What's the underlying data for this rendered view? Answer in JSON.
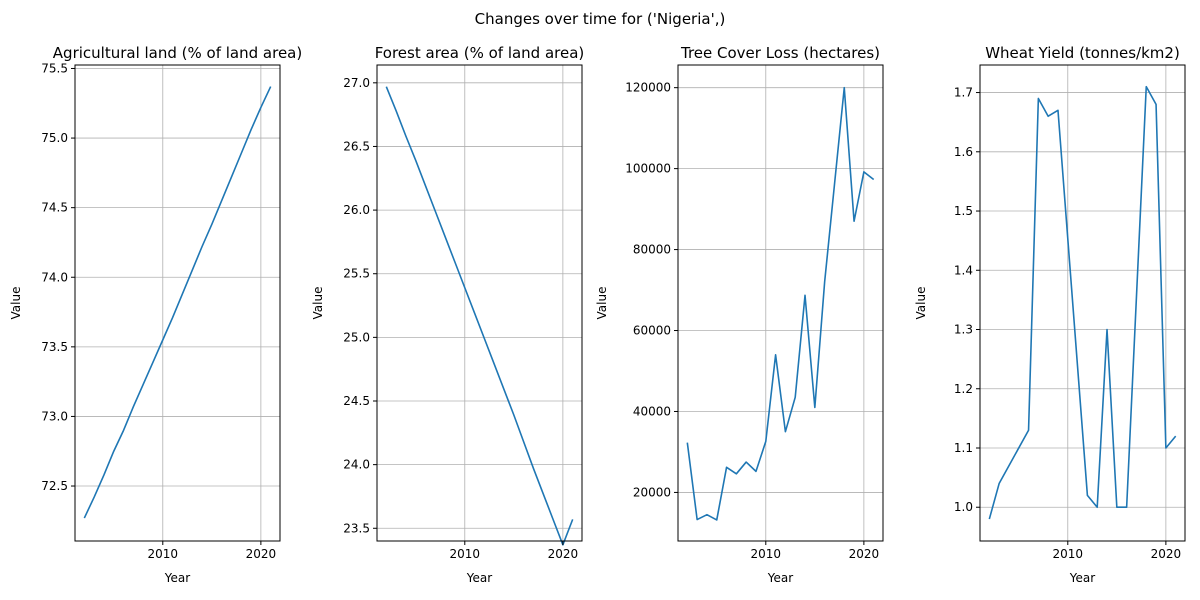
{
  "figure": {
    "suptitle": "Changes over time for ('Nigeria',)"
  },
  "colors": {
    "line": "#1f77b4",
    "grid": "#b0b0b0",
    "axis": "#000000"
  },
  "chart_data": [
    {
      "type": "line",
      "title": "Agricultural land (% of land area)",
      "xlabel": "Year",
      "ylabel": "Value",
      "xlim": [
        2001.05,
        2021.95
      ],
      "ylim": [
        72.105,
        75.525
      ],
      "xticks": [
        2010,
        2020
      ],
      "yticks": [
        72.5,
        73.0,
        73.5,
        74.0,
        74.5,
        75.0,
        75.5
      ],
      "ytick_labels": [
        "72.5",
        "73.0",
        "73.5",
        "74.0",
        "74.5",
        "75.0",
        "75.5"
      ],
      "grid": true,
      "x": [
        2002,
        2003,
        2004,
        2005,
        2006,
        2007,
        2008,
        2009,
        2010,
        2011,
        2012,
        2013,
        2014,
        2015,
        2016,
        2017,
        2018,
        2019,
        2020,
        2021
      ],
      "y": [
        72.27,
        72.42,
        72.58,
        72.75,
        72.9,
        73.07,
        73.23,
        73.39,
        73.55,
        73.71,
        73.88,
        74.05,
        74.22,
        74.38,
        74.55,
        74.72,
        74.89,
        75.06,
        75.22,
        75.37
      ]
    },
    {
      "type": "line",
      "title": "Forest area (% of land area)",
      "xlabel": "Year",
      "ylabel": "Value",
      "xlim": [
        2001.05,
        2021.95
      ],
      "ylim": [
        23.4,
        27.14
      ],
      "xticks": [
        2010,
        2020
      ],
      "yticks": [
        23.5,
        24.0,
        24.5,
        25.0,
        25.5,
        26.0,
        26.5,
        27.0
      ],
      "ytick_labels": [
        "23.5",
        "24.0",
        "24.5",
        "25.0",
        "25.5",
        "26.0",
        "26.5",
        "27.0"
      ],
      "grid": true,
      "x": [
        2002,
        2003,
        2004,
        2005,
        2006,
        2007,
        2008,
        2009,
        2010,
        2011,
        2012,
        2013,
        2014,
        2015,
        2016,
        2017,
        2018,
        2019,
        2020,
        2021
      ],
      "y": [
        26.97,
        26.78,
        26.58,
        26.39,
        26.19,
        25.99,
        25.79,
        25.59,
        25.39,
        25.19,
        24.99,
        24.79,
        24.59,
        24.39,
        24.18,
        23.97,
        23.77,
        23.57,
        23.37,
        23.57
      ]
    },
    {
      "type": "line",
      "title": "Tree Cover Loss (hectares)",
      "xlabel": "Year",
      "ylabel": "Value",
      "xlim": [
        2001.05,
        2021.95
      ],
      "ylim": [
        8000,
        125600
      ],
      "xticks": [
        2010,
        2020
      ],
      "yticks": [
        20000,
        40000,
        60000,
        80000,
        100000,
        120000
      ],
      "ytick_labels": [
        "20000",
        "40000",
        "60000",
        "80000",
        "100000",
        "120000"
      ],
      "grid": true,
      "x": [
        2002,
        2003,
        2004,
        2005,
        2006,
        2007,
        2008,
        2009,
        2010,
        2011,
        2012,
        2013,
        2014,
        2015,
        2016,
        2017,
        2018,
        2019,
        2020,
        2021
      ],
      "y": [
        32300,
        13300,
        14500,
        13200,
        26200,
        24600,
        27500,
        25200,
        32600,
        54000,
        35000,
        43500,
        68700,
        41000,
        72000,
        96000,
        120000,
        87000,
        99200,
        97300
      ]
    },
    {
      "type": "line",
      "title": "Wheat Yield (tonnes/km2)",
      "xlabel": "Year",
      "ylabel": "Value",
      "xlim": [
        2001.05,
        2021.95
      ],
      "ylim": [
        0.943,
        1.7465
      ],
      "xticks": [
        2010,
        2020
      ],
      "yticks": [
        1.0,
        1.1,
        1.2,
        1.3,
        1.4,
        1.5,
        1.6,
        1.7
      ],
      "ytick_labels": [
        "1.0",
        "1.1",
        "1.2",
        "1.3",
        "1.4",
        "1.5",
        "1.6",
        "1.7"
      ],
      "grid": true,
      "x": [
        2002,
        2003,
        2006,
        2007,
        2008,
        2009,
        2012,
        2013,
        2014,
        2015,
        2016,
        2018,
        2019,
        2020,
        2021
      ],
      "y": [
        0.98,
        1.04,
        1.13,
        1.69,
        1.66,
        1.67,
        1.02,
        1.0,
        1.3,
        1.0,
        1.0,
        1.71,
        1.68,
        1.1,
        1.12
      ]
    }
  ]
}
